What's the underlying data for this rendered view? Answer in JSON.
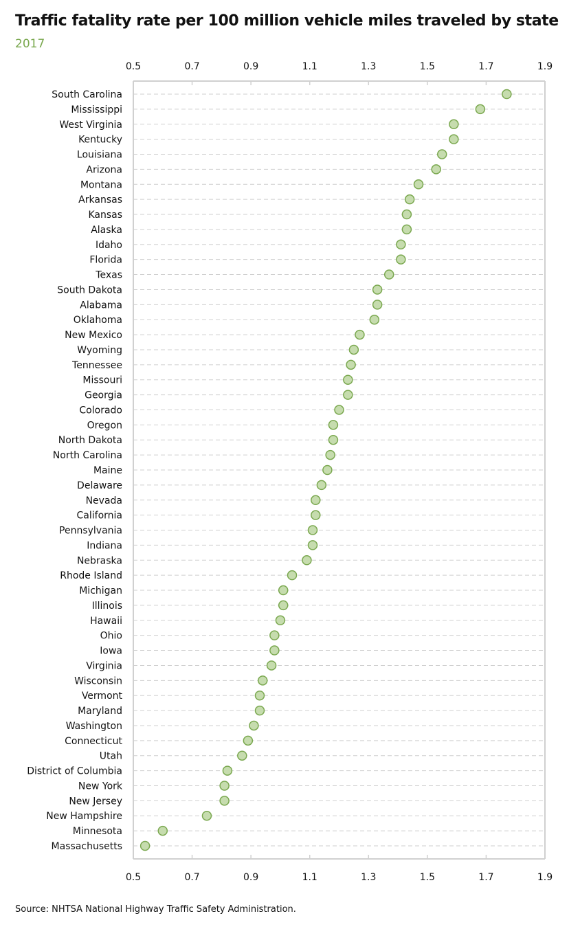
{
  "chart_data": {
    "type": "scatter",
    "title": "Traffic fatality rate per 100 million vehicle miles traveled by state",
    "subtitle": "2017",
    "source": "Source: NHTSA National Highway Traffic Safety Administration.",
    "xlim": [
      0.5,
      1.9
    ],
    "xticks": [
      "0.5",
      "0.7",
      "0.9",
      "1.1",
      "1.3",
      "1.5",
      "1.7",
      "1.9"
    ],
    "grid": "dashed horizontal",
    "colors": {
      "marker_fill": "#c6dcae",
      "marker_stroke": "#7aa84f",
      "subtitle": "#7aa84f"
    },
    "categories": [
      "South Carolina",
      "Mississippi",
      "West Virginia",
      "Kentucky",
      "Louisiana",
      "Arizona",
      "Montana",
      "Arkansas",
      "Kansas",
      "Alaska",
      "Idaho",
      "Florida",
      "Texas",
      "South Dakota",
      "Alabama",
      "Oklahoma",
      "New Mexico",
      "Wyoming",
      "Tennessee",
      "Missouri",
      "Georgia",
      "Colorado",
      "Oregon",
      "North Dakota",
      "North Carolina",
      "Maine",
      "Delaware",
      "Nevada",
      "California",
      "Pennsylvania",
      "Indiana",
      "Nebraska",
      "Rhode Island",
      "Michigan",
      "Illinois",
      "Hawaii",
      "Ohio",
      "Iowa",
      "Virginia",
      "Wisconsin",
      "Vermont",
      "Maryland",
      "Washington",
      "Connecticut",
      "Utah",
      "District of Columbia",
      "New York",
      "New Jersey",
      "New Hampshire",
      "Minnesota",
      "Massachusetts"
    ],
    "values": [
      1.77,
      1.68,
      1.59,
      1.59,
      1.55,
      1.53,
      1.47,
      1.44,
      1.43,
      1.43,
      1.41,
      1.41,
      1.37,
      1.33,
      1.33,
      1.32,
      1.27,
      1.25,
      1.24,
      1.23,
      1.23,
      1.2,
      1.18,
      1.18,
      1.17,
      1.16,
      1.14,
      1.12,
      1.12,
      1.11,
      1.11,
      1.09,
      1.04,
      1.01,
      1.01,
      1.0,
      0.98,
      0.98,
      0.97,
      0.94,
      0.93,
      0.93,
      0.91,
      0.89,
      0.87,
      0.82,
      0.81,
      0.81,
      0.75,
      0.6,
      0.54
    ]
  }
}
